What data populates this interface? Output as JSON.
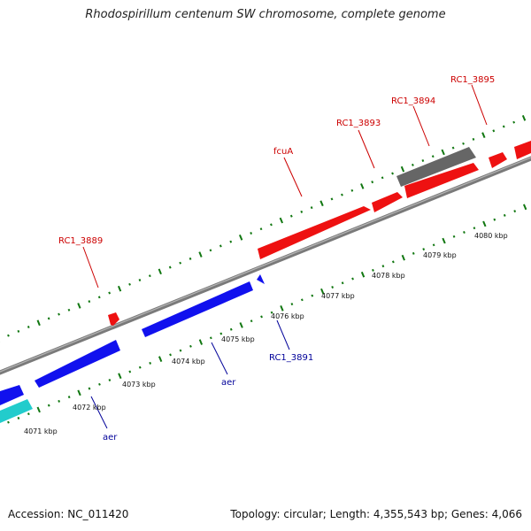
{
  "title": "Rhodospirillum centenum SW chromosome, complete genome",
  "footer": {
    "accession": "Accession: NC_011420",
    "summary": "Topology: circular; Length: 4,355,543 bp; Genes: 4,066"
  },
  "colors": {
    "forward": "#ee1111",
    "reverse": "#1111ee",
    "other": "#666666",
    "cyan": "#22cccc",
    "backbone": "#888888",
    "tick": "#117711",
    "forward_label": "#cc0000",
    "reverse_label": "#000099"
  },
  "kbp_labels": [
    "4071 kbp",
    "4072 kbp",
    "4073 kbp",
    "4074 kbp",
    "4075 kbp",
    "4076 kbp",
    "4077 kbp",
    "4078 kbp",
    "4079 kbp",
    "4080 kbp"
  ],
  "forward_gene_labels": [
    "RC1_3889",
    "fcuA",
    "RC1_3893",
    "RC1_3894",
    "RC1_3895"
  ],
  "reverse_gene_labels": [
    "aer",
    "aer",
    "RC1_3891"
  ]
}
